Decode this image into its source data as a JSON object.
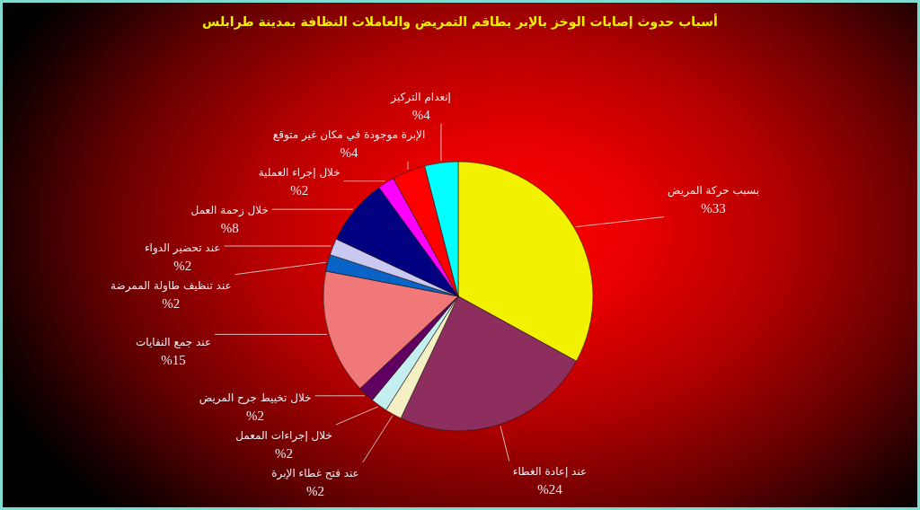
{
  "chart_data": {
    "type": "pie",
    "title": "أسباب حدوث إصابات الوخز بالإبر بطاقم التمريض والعاملات النظافة بمدينة طرابلس",
    "categories": [
      "بسبب حركة المريض",
      "عند إعادة الغطاء",
      "عند فتح غطاء الإبرة",
      "خلال إجراءات المعمل",
      "خلال تخييط جرح المريض",
      "عند جمع النفايات",
      "عند تنظيف طاولة الممرضة",
      "عند تحضير الدواء",
      "خلال زحمة العمل",
      "خلال إجراء العملية",
      "الإبرة موجودة في مكان غير متوقع",
      "إنعدام التركيز"
    ],
    "values": [
      33,
      24,
      2,
      2,
      2,
      15,
      2,
      2,
      8,
      2,
      4,
      4
    ],
    "colors": [
      "#f2f200",
      "#8e2e5e",
      "#f4f0c4",
      "#c4eef0",
      "#600060",
      "#f07878",
      "#0a64c8",
      "#c8c8f0",
      "#000080",
      "#ff00ff",
      "#ff0000",
      "#00ffff"
    ],
    "value_labels": [
      "%33",
      "%24",
      "%2",
      "%2",
      "%2",
      "%15",
      "%2",
      "%2",
      "%8",
      "%2",
      "%4",
      "%4"
    ]
  }
}
